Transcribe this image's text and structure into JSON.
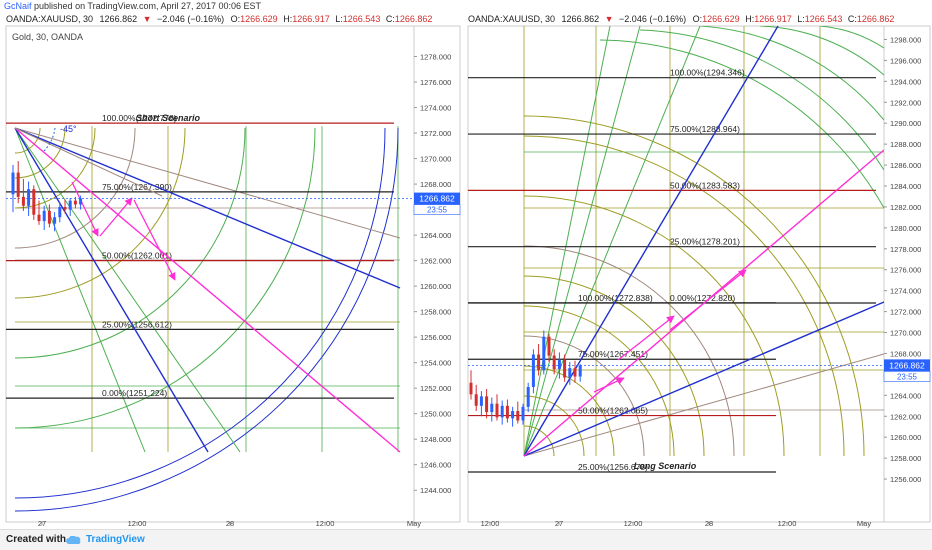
{
  "header": {
    "author": "GcNaif",
    "publish_text": "published on TradingView.com, April 27, 2017 00:06 EST"
  },
  "footer": {
    "created_label": "Created with",
    "brand_label": "TradingView"
  },
  "colors": {
    "price_line": "#2962ff",
    "up": "#2962ff",
    "down": "#d32f2f",
    "fib_black": "#222222",
    "fib_red": "#b71c1c",
    "gann_green": "#4caf50",
    "gann_olive": "#9e9d24",
    "gann_brown": "#a1887f",
    "trend_blue": "#1f2fd0",
    "arrow_magenta": "#ff2fd6"
  },
  "chart_data": [
    {
      "type": "candlestick",
      "symbol_line": "OANDA:XAUUSD, 30",
      "last": "1266.862",
      "change_arrow": "▼",
      "change": "−2.046 (−0.16%)",
      "ohlc": {
        "O": "1266.629",
        "H": "1266.917",
        "L": "1266.543",
        "C": "1266.862"
      },
      "subtitle": "Gold, 30, OANDA",
      "scenario": "Short Scenario",
      "angle_label": "-45°",
      "countdown": "23:55",
      "ylim": [
        1243,
        1280
      ],
      "y_ticks": [
        "1278.000",
        "1276.000",
        "1274.000",
        "1272.000",
        "1270.000",
        "1268.000",
        "1266.000",
        "1264.000",
        "1262.000",
        "1260.000",
        "1258.000",
        "1256.000",
        "1254.000",
        "1252.000",
        "1250.000",
        "1248.000",
        "1246.000",
        "1244.000"
      ],
      "x_ticks": [
        "27",
        "12:00",
        "28",
        "12:00",
        "May"
      ],
      "fib_levels": [
        {
          "label": "100.00%(1272.778)",
          "value": 1272.778,
          "color": "red"
        },
        {
          "label": "75.00%(1267.390)",
          "value": 1267.39,
          "color": "black"
        },
        {
          "label": "50.00%(1262.001)",
          "value": 1262.001,
          "color": "red"
        },
        {
          "label": "25.00%(1256.612)",
          "value": 1256.612,
          "color": "black"
        },
        {
          "label": "0.00%(1251.224)",
          "value": 1251.224,
          "color": "black"
        }
      ],
      "candles": [
        [
          1267.2,
          1269.5,
          1265.8,
          1268.9
        ],
        [
          1268.9,
          1269.8,
          1266.5,
          1267.0
        ],
        [
          1267.0,
          1268.4,
          1265.9,
          1266.3
        ],
        [
          1266.3,
          1268.2,
          1265.5,
          1267.6
        ],
        [
          1267.6,
          1267.9,
          1265.2,
          1265.6
        ],
        [
          1265.6,
          1266.7,
          1264.8,
          1265.1
        ],
        [
          1265.1,
          1266.3,
          1264.4,
          1265.9
        ],
        [
          1265.9,
          1266.4,
          1264.6,
          1264.9
        ],
        [
          1264.9,
          1265.8,
          1264.3,
          1265.4
        ],
        [
          1265.4,
          1266.6,
          1265.0,
          1266.2
        ],
        [
          1266.2,
          1266.8,
          1265.7,
          1266.0
        ],
        [
          1266.0,
          1266.9,
          1265.5,
          1266.7
        ],
        [
          1266.7,
          1267.0,
          1266.1,
          1266.4
        ],
        [
          1266.4,
          1267.1,
          1266.0,
          1266.86
        ]
      ]
    },
    {
      "type": "candlestick",
      "symbol_line": "OANDA:XAUUSD, 30",
      "last": "1266.862",
      "change_arrow": "▼",
      "change": "−2.046 (−0.16%)",
      "ohlc": {
        "O": "1266.629",
        "H": "1266.917",
        "L": "1266.543",
        "C": "1266.862"
      },
      "scenario": "Long Scenario",
      "countdown": "23:55",
      "ylim": [
        1254,
        1299
      ],
      "y_ticks": [
        "1298.000",
        "1296.000",
        "1294.000",
        "1292.000",
        "1290.000",
        "1288.000",
        "1286.000",
        "1284.000",
        "1282.000",
        "1280.000",
        "1278.000",
        "1276.000",
        "1274.000",
        "1272.000",
        "1270.000",
        "1268.000",
        "1266.000",
        "1264.000",
        "1262.000",
        "1260.000",
        "1258.000",
        "1256.000"
      ],
      "x_ticks": [
        "12:00",
        "27",
        "12:00",
        "28",
        "12:00",
        "May"
      ],
      "fib_levels_top": [
        {
          "label": "100.00%(1294.346)",
          "value": 1294.346,
          "color": "black"
        },
        {
          "label": "75.00%(1288.964)",
          "value": 1288.964,
          "color": "black"
        },
        {
          "label": "50.00%(1283.583)",
          "value": 1283.583,
          "color": "red"
        },
        {
          "label": "25.00%(1278.201)",
          "value": 1278.201,
          "color": "black"
        },
        {
          "label": "0.00%(1272.820)",
          "value": 1272.82,
          "color": "black"
        }
      ],
      "fib_levels_bottom": [
        {
          "label": "100.00%(1272.838)",
          "value": 1272.838,
          "color": "black"
        },
        {
          "label": "75.00%(1267.451)",
          "value": 1267.451,
          "color": "black"
        },
        {
          "label": "50.00%(1262.065)",
          "value": 1262.065,
          "color": "red"
        },
        {
          "label": "25.00%(1256.678)",
          "value": 1256.678,
          "color": "black"
        }
      ],
      "candles": [
        [
          1265.2,
          1266.4,
          1263.6,
          1264.1
        ],
        [
          1264.1,
          1265.0,
          1262.5,
          1263.0
        ],
        [
          1263.0,
          1264.4,
          1262.0,
          1263.9
        ],
        [
          1263.9,
          1264.6,
          1261.8,
          1262.4
        ],
        [
          1262.4,
          1263.8,
          1261.5,
          1263.2
        ],
        [
          1263.2,
          1264.1,
          1261.6,
          1261.9
        ],
        [
          1261.9,
          1263.5,
          1261.2,
          1263.0
        ],
        [
          1263.0,
          1263.6,
          1261.4,
          1261.8
        ],
        [
          1261.8,
          1262.9,
          1261.0,
          1262.5
        ],
        [
          1262.5,
          1263.4,
          1261.3,
          1261.6
        ],
        [
          1261.6,
          1263.2,
          1261.2,
          1262.9
        ],
        [
          1262.9,
          1265.2,
          1262.4,
          1264.8
        ],
        [
          1264.8,
          1268.4,
          1264.2,
          1267.9
        ],
        [
          1267.9,
          1268.9,
          1265.9,
          1266.4
        ],
        [
          1266.4,
          1270.2,
          1266.0,
          1269.6
        ],
        [
          1269.6,
          1269.9,
          1267.2,
          1267.8
        ],
        [
          1267.8,
          1268.4,
          1266.0,
          1266.5
        ],
        [
          1266.5,
          1268.1,
          1265.6,
          1267.4
        ],
        [
          1267.4,
          1267.9,
          1265.3,
          1265.7
        ],
        [
          1265.7,
          1267.2,
          1265.0,
          1266.6
        ],
        [
          1266.6,
          1267.3,
          1265.2,
          1265.8
        ],
        [
          1265.8,
          1267.0,
          1265.3,
          1266.86
        ]
      ]
    }
  ]
}
